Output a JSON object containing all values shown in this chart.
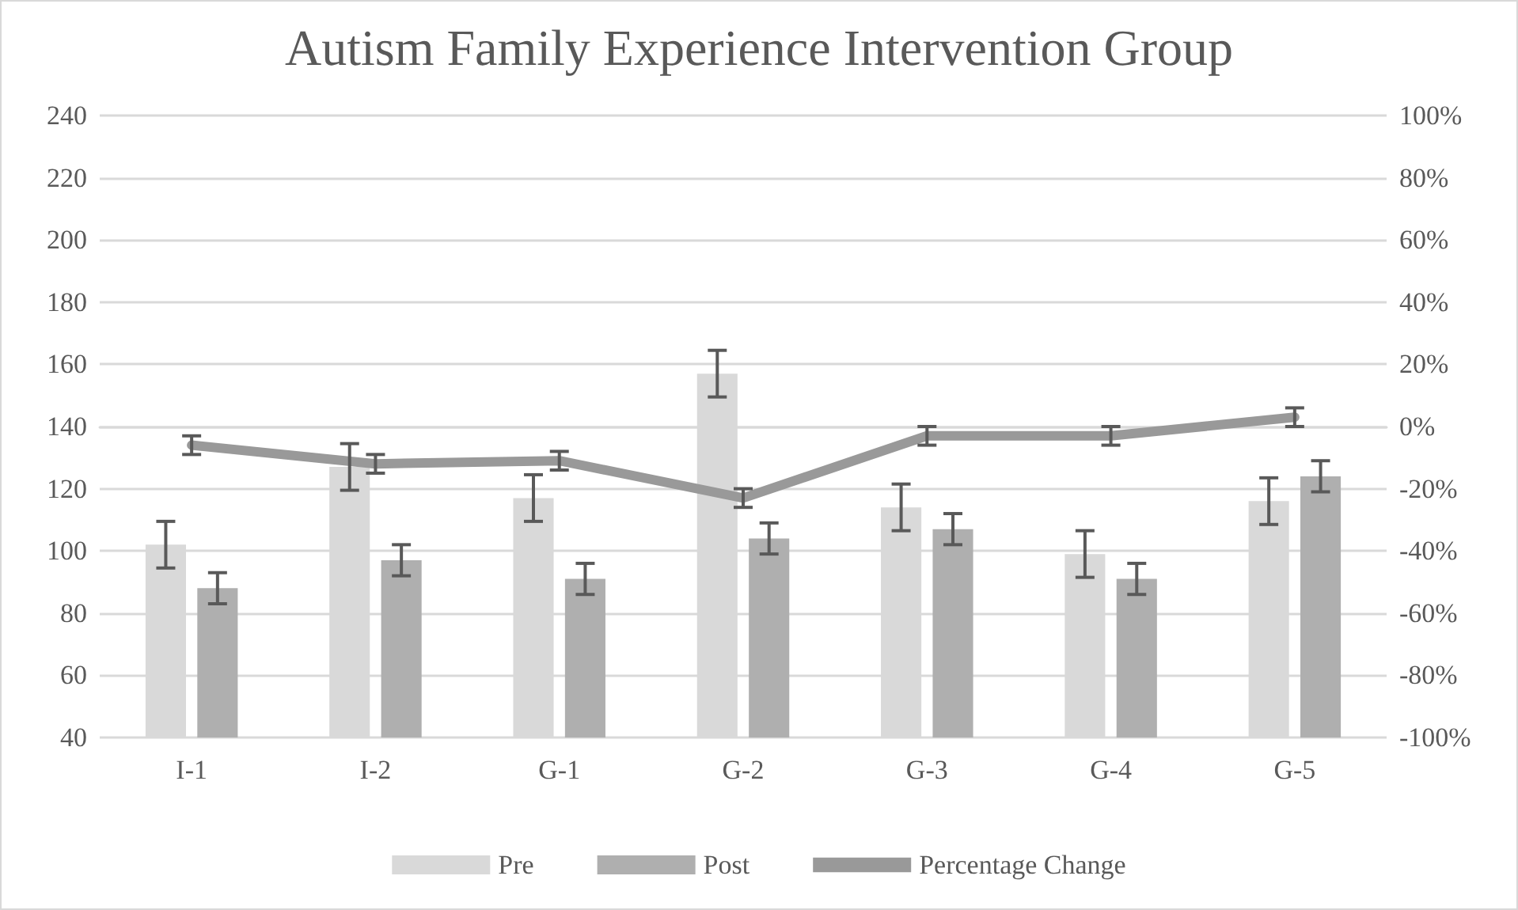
{
  "chart_data": {
    "type": "bar",
    "title": "Autism Family Experience Intervention Group",
    "categories": [
      "I-1",
      "I-2",
      "G-1",
      "G-2",
      "G-3",
      "G-4",
      "G-5"
    ],
    "series": [
      {
        "name": "Pre",
        "color": "#d9d9d9",
        "values": [
          102,
          127,
          117,
          157,
          114,
          99,
          116
        ],
        "errors": [
          7.5,
          7.5,
          7.5,
          7.5,
          7.5,
          7.5,
          7.5
        ]
      },
      {
        "name": "Post",
        "color": "#afafaf",
        "values": [
          88,
          97,
          91,
          104,
          107,
          91,
          124
        ],
        "errors": [
          5,
          5,
          5,
          5,
          5,
          5,
          5
        ]
      },
      {
        "name": "Percentage Change",
        "type": "line",
        "axis": "y2",
        "color": "#999999",
        "values": [
          -6,
          -12,
          -11,
          -23,
          -3,
          -3,
          3
        ],
        "errors": [
          3,
          3,
          3,
          3,
          3,
          3,
          3
        ]
      }
    ],
    "ylim": [
      40,
      240
    ],
    "yticks": [
      40,
      60,
      80,
      100,
      120,
      140,
      160,
      180,
      200,
      220,
      240
    ],
    "y2lim": [
      -100,
      100
    ],
    "y2ticks": [
      {
        "value": -100,
        "label": "-100%"
      },
      {
        "value": -80,
        "label": "-80%"
      },
      {
        "value": -60,
        "label": "-60%"
      },
      {
        "value": -40,
        "label": "-40%"
      },
      {
        "value": -20,
        "label": "-20%"
      },
      {
        "value": 0,
        "label": "0%"
      },
      {
        "value": 20,
        "label": "20%"
      },
      {
        "value": 40,
        "label": "40%"
      },
      {
        "value": 60,
        "label": "60%"
      },
      {
        "value": 80,
        "label": "80%"
      },
      {
        "value": 100,
        "label": "100%"
      }
    ],
    "grid": "y",
    "legend": "bottom",
    "marker": "none"
  }
}
